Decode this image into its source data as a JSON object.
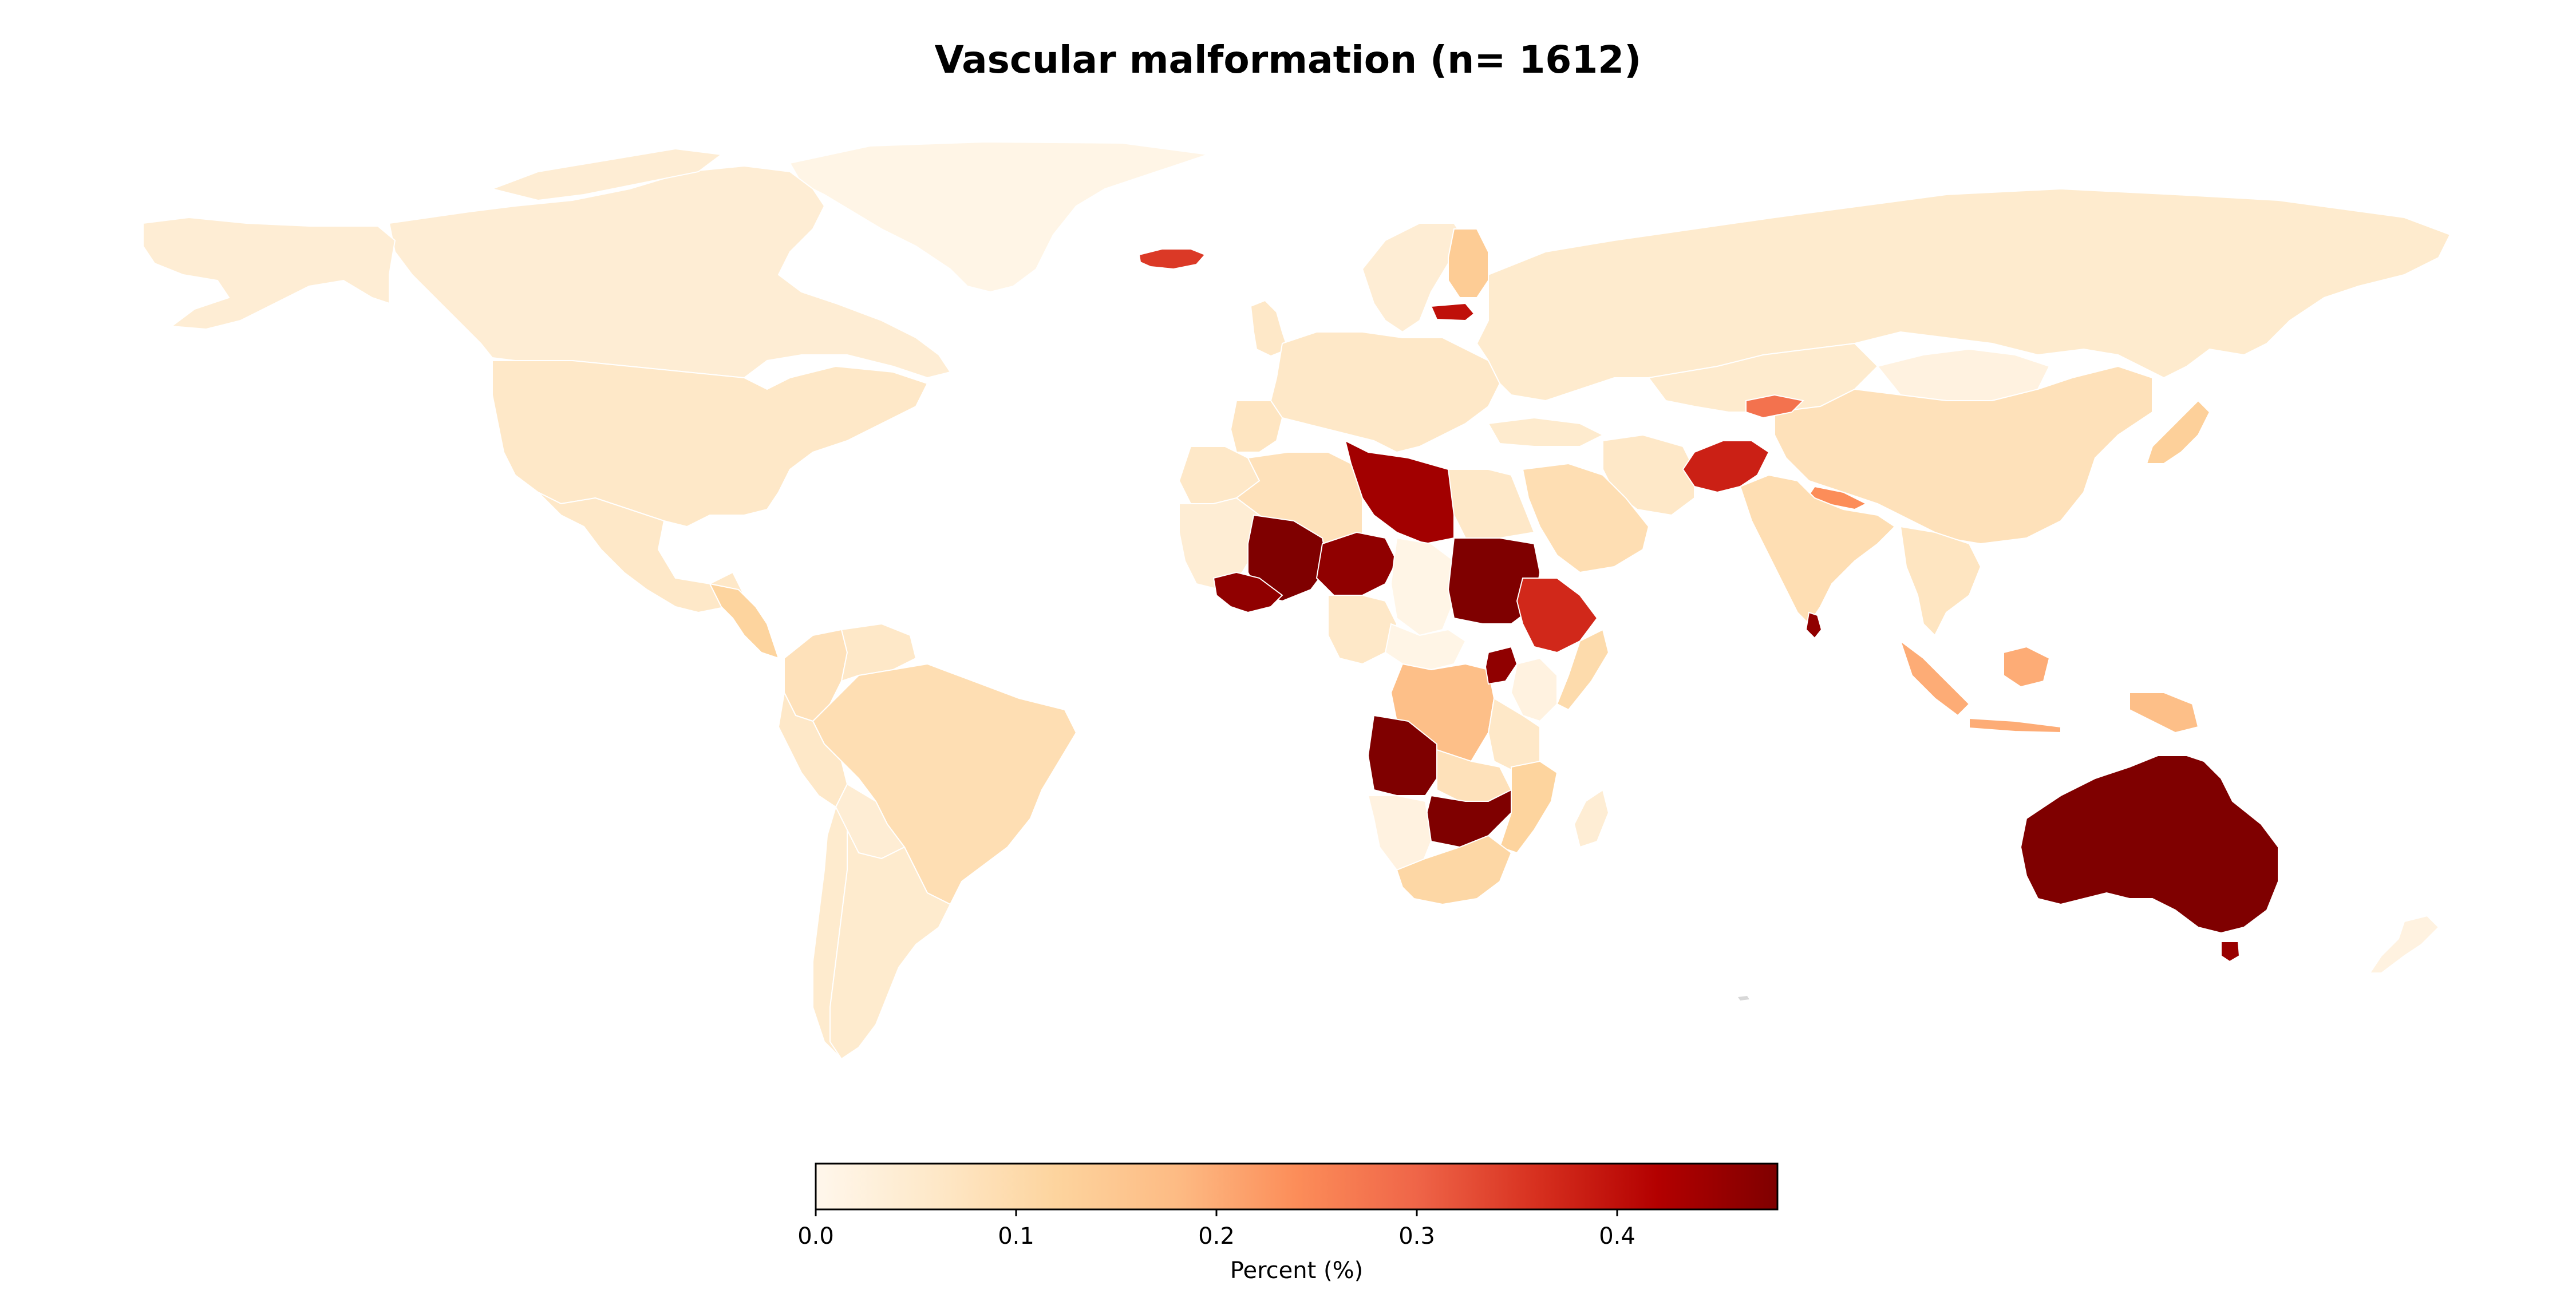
{
  "title": "Vascular malformation (n= 1612)",
  "colorbar": {
    "label": "Percent (%)",
    "min": 0.0,
    "max": 0.48,
    "ticks": [
      {
        "value": 0.0,
        "label": "0.0"
      },
      {
        "value": 0.1,
        "label": "0.1"
      },
      {
        "value": 0.2,
        "label": "0.2"
      },
      {
        "value": 0.3,
        "label": "0.3"
      },
      {
        "value": 0.4,
        "label": "0.4"
      }
    ],
    "colormap": "OrRd",
    "stops": [
      "#fff7ec",
      "#fee8c8",
      "#fdd49e",
      "#fdbb84",
      "#fc8d59",
      "#ef6548",
      "#d7301f",
      "#b30000",
      "#7f0000"
    ]
  },
  "chart_data": {
    "type": "choropleth",
    "value_unit": "Percent (%)",
    "regions": [
      {
        "id": "greenland",
        "value": 0.01
      },
      {
        "id": "canada",
        "value": 0.04
      },
      {
        "id": "alaska",
        "value": 0.04
      },
      {
        "id": "usa",
        "value": 0.06
      },
      {
        "id": "mexico",
        "value": 0.06
      },
      {
        "id": "central-america",
        "value": 0.12
      },
      {
        "id": "colombia",
        "value": 0.08
      },
      {
        "id": "venezuela",
        "value": 0.06
      },
      {
        "id": "brazil",
        "value": 0.09
      },
      {
        "id": "peru",
        "value": 0.06
      },
      {
        "id": "bolivia",
        "value": 0.04
      },
      {
        "id": "chile",
        "value": 0.05
      },
      {
        "id": "argentina",
        "value": 0.05
      },
      {
        "id": "iceland",
        "value": 0.35
      },
      {
        "id": "uk",
        "value": 0.06
      },
      {
        "id": "scandinavia",
        "value": 0.04
      },
      {
        "id": "finland",
        "value": 0.14
      },
      {
        "id": "latvia",
        "value": 0.4
      },
      {
        "id": "europe",
        "value": 0.06
      },
      {
        "id": "russia",
        "value": 0.05
      },
      {
        "id": "kazakhstan",
        "value": 0.05
      },
      {
        "id": "mongolia",
        "value": 0.02
      },
      {
        "id": "china",
        "value": 0.08
      },
      {
        "id": "japan",
        "value": 0.13
      },
      {
        "id": "turkey",
        "value": 0.05
      },
      {
        "id": "iran",
        "value": 0.06
      },
      {
        "id": "afghanistan",
        "value": 0.38
      },
      {
        "id": "tajikistan",
        "value": 0.28
      },
      {
        "id": "nepal",
        "value": 0.24
      },
      {
        "id": "india",
        "value": 0.09
      },
      {
        "id": "sri-lanka",
        "value": 0.46
      },
      {
        "id": "saudi-arabia",
        "value": 0.09
      },
      {
        "id": "southeast-asia",
        "value": 0.07
      },
      {
        "id": "borneo",
        "value": 0.2
      },
      {
        "id": "indonesia",
        "value": 0.2
      },
      {
        "id": "new-guinea",
        "value": 0.17
      },
      {
        "id": "australia",
        "value": 0.48
      },
      {
        "id": "tasmania",
        "value": 0.45
      },
      {
        "id": "new-zealand",
        "value": 0.02
      },
      {
        "id": "morocco",
        "value": 0.06
      },
      {
        "id": "algeria",
        "value": 0.08
      },
      {
        "id": "libya",
        "value": 0.44
      },
      {
        "id": "egypt",
        "value": 0.06
      },
      {
        "id": "west-africa-coast",
        "value": 0.04
      },
      {
        "id": "mali",
        "value": 0.48
      },
      {
        "id": "senegal-guinea",
        "value": 0.46
      },
      {
        "id": "niger",
        "value": 0.46
      },
      {
        "id": "chad",
        "value": 0.01
      },
      {
        "id": "nigeria",
        "value": 0.06
      },
      {
        "id": "sudan",
        "value": 0.48
      },
      {
        "id": "ethiopia",
        "value": 0.37
      },
      {
        "id": "somalia",
        "value": 0.1
      },
      {
        "id": "central-african-rep",
        "value": 0.01
      },
      {
        "id": "dr-congo",
        "value": 0.17
      },
      {
        "id": "uganda",
        "value": 0.46
      },
      {
        "id": "kenya",
        "value": 0.02
      },
      {
        "id": "tanzania",
        "value": 0.06
      },
      {
        "id": "angola",
        "value": 0.48
      },
      {
        "id": "zambia",
        "value": 0.08
      },
      {
        "id": "zimbabwe",
        "value": 0.48
      },
      {
        "id": "mozambique",
        "value": 0.12
      },
      {
        "id": "madagascar",
        "value": 0.04
      },
      {
        "id": "namibia",
        "value": 0.02
      },
      {
        "id": "south-africa",
        "value": 0.11
      }
    ]
  }
}
